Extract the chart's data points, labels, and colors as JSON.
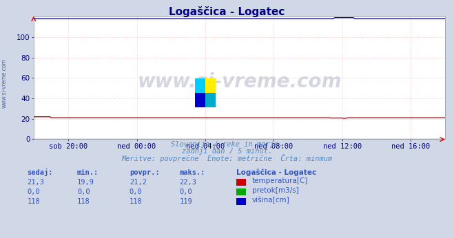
{
  "title": "Logaščica - Logatec",
  "title_color": "#000080",
  "bg_color": "#d0d8e8",
  "plot_bg_color": "#ffffff",
  "grid_color_h": "#ffbbbb",
  "grid_color_v": "#ffbbbb",
  "watermark": "www.si-vreme.com",
  "subtitle1": "Slovenija / reke in morje.",
  "subtitle2": "zadnji dan / 5 minut.",
  "subtitle3": "Meritve: povprečne  Enote: metrične  Črta: minmum",
  "subtitle_color": "#5588bb",
  "xlabel_color": "#000080",
  "x_tick_labels": [
    "sob 20:00",
    "ned 00:00",
    "ned 04:00",
    "ned 08:00",
    "ned 12:00",
    "ned 16:00"
  ],
  "x_tick_positions": [
    0.0833,
    0.25,
    0.4167,
    0.5833,
    0.75,
    0.9167
  ],
  "ylim": [
    0,
    120
  ],
  "y_ticks": [
    0,
    20,
    40,
    60,
    80,
    100
  ],
  "colors": {
    "temperatura": "#cc0000",
    "pretok": "#00aa00",
    "visina": "#0000cc"
  },
  "table_headers": [
    "sedaj:",
    "min.:",
    "povpr.:",
    "maks.:"
  ],
  "table_color": "#3355bb",
  "left_label": "www.si-vreme.com",
  "table_data": [
    [
      "21,3",
      "19,9",
      "21,2",
      "22,3"
    ],
    [
      "0,0",
      "0,0",
      "0,0",
      "0,0"
    ],
    [
      "118",
      "118",
      "118",
      "119"
    ]
  ],
  "legend_items": [
    {
      "label": "temperatura[C]",
      "color": "#cc0000"
    },
    {
      "label": "pretok[m3/s]",
      "color": "#00aa00"
    },
    {
      "label": "višina[cm]",
      "color": "#0000cc"
    }
  ],
  "legend_title": "Logaščica - Logatec"
}
